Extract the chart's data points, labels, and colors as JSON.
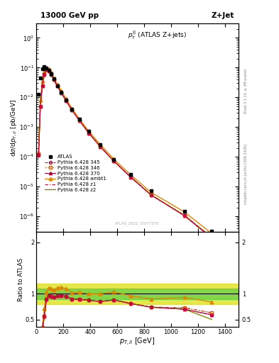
{
  "title_left": "13000 GeV pp",
  "title_right": "Z+Jet",
  "plot_label": "$p_T^{||}$ (ATLAS Z+jets)",
  "watermark": "ATLAS_2022_I2077570",
  "rivet_label": "Rivet 3.1.10, ≥ 3M events",
  "mcplots_label": "mcplots.cern.ch [arXiv:1306.3436]",
  "xlabel": "$p_{T,ll}$ [GeV]",
  "ylabel_main": "d$\\sigma$/d$p_{T,ll}$ [pb/GeV]",
  "ylabel_ratio": "Ratio to ATLAS",
  "main_ylim": [
    3e-07,
    3
  ],
  "ratio_ylim": [
    0.36,
    2.2
  ],
  "ratio_yticks": [
    0.5,
    1.0,
    2.0
  ],
  "xlim": [
    0,
    1500
  ],
  "atlas_x": [
    17,
    30,
    45,
    60,
    75,
    92,
    110,
    130,
    155,
    185,
    220,
    265,
    320,
    390,
    475,
    575,
    700,
    850,
    1100,
    1300
  ],
  "atlas_y": [
    0.013,
    0.045,
    0.09,
    0.105,
    0.095,
    0.08,
    0.062,
    0.042,
    0.025,
    0.015,
    0.0082,
    0.0041,
    0.00185,
    0.00072,
    0.00026,
    8.2e-05,
    2.6e-05,
    7.2e-06,
    1.5e-06,
    3.2e-07
  ],
  "py345_x": [
    17,
    30,
    45,
    60,
    75,
    92,
    110,
    130,
    155,
    185,
    220,
    265,
    320,
    390,
    475,
    575,
    700,
    850,
    1100,
    1300
  ],
  "py345_y": [
    0.00012,
    0.005,
    0.025,
    0.06,
    0.085,
    0.078,
    0.059,
    0.039,
    0.024,
    0.0145,
    0.0078,
    0.0037,
    0.00165,
    0.00063,
    0.00022,
    7.2e-05,
    2.1e-05,
    5.3e-06,
    1.05e-06,
    1.9e-07
  ],
  "py346_x": [
    17,
    30,
    45,
    60,
    75,
    92,
    110,
    130,
    155,
    185,
    220,
    265,
    320,
    390,
    475,
    575,
    700,
    850,
    1100,
    1300
  ],
  "py346_y": [
    0.00012,
    0.005,
    0.025,
    0.06,
    0.085,
    0.078,
    0.059,
    0.039,
    0.024,
    0.0145,
    0.0078,
    0.0037,
    0.00165,
    0.00063,
    0.00022,
    7.2e-05,
    2.1e-05,
    5.3e-06,
    1.1e-06,
    2e-07
  ],
  "py370_x": [
    17,
    30,
    45,
    60,
    75,
    92,
    110,
    130,
    155,
    185,
    220,
    265,
    320,
    390,
    475,
    575,
    700,
    850,
    1100,
    1300
  ],
  "py370_y": [
    0.00012,
    0.005,
    0.025,
    0.06,
    0.085,
    0.078,
    0.059,
    0.039,
    0.024,
    0.0145,
    0.0078,
    0.0037,
    0.00165,
    0.00063,
    0.00022,
    7.2e-05,
    2.1e-05,
    5.3e-06,
    1.05e-06,
    1.9e-07
  ],
  "pyambt1_x": [
    17,
    30,
    45,
    60,
    75,
    92,
    110,
    130,
    155,
    185,
    220,
    265,
    320,
    390,
    475,
    575,
    700,
    850,
    1100,
    1300
  ],
  "pyambt1_y": [
    0.00015,
    0.008,
    0.035,
    0.075,
    0.098,
    0.09,
    0.068,
    0.045,
    0.028,
    0.017,
    0.009,
    0.0042,
    0.0019,
    0.00072,
    0.00026,
    8.5e-05,
    2.5e-05,
    6.5e-06,
    1.4e-06,
    2.7e-07
  ],
  "pyz1_x": [
    17,
    30,
    45,
    60,
    75,
    92,
    110,
    130,
    155,
    185,
    220,
    265,
    320,
    390,
    475,
    575,
    700,
    850,
    1100,
    1300
  ],
  "pyz1_y": [
    0.00012,
    0.005,
    0.025,
    0.06,
    0.085,
    0.078,
    0.059,
    0.039,
    0.024,
    0.0145,
    0.0078,
    0.0037,
    0.00165,
    0.00063,
    0.00022,
    7.2e-05,
    2.1e-05,
    5.3e-06,
    1.1e-06,
    2e-07
  ],
  "pyz2_x": [
    17,
    30,
    45,
    60,
    75,
    92,
    110,
    130,
    155,
    185,
    220,
    265,
    320,
    390,
    475,
    575,
    700,
    850,
    1100,
    1300
  ],
  "pyz2_y": [
    0.00012,
    0.005,
    0.025,
    0.06,
    0.085,
    0.078,
    0.059,
    0.039,
    0.024,
    0.0145,
    0.0078,
    0.0037,
    0.00165,
    0.00063,
    0.00022,
    7.2e-05,
    2.1e-05,
    5.3e-06,
    1.05e-06,
    1.9e-07
  ],
  "ratio_py345": [
    0.009,
    0.11,
    0.28,
    0.57,
    0.89,
    0.97,
    0.95,
    0.93,
    0.96,
    0.97,
    0.95,
    0.9,
    0.89,
    0.875,
    0.85,
    0.88,
    0.81,
    0.74,
    0.7,
    0.59
  ],
  "ratio_py346": [
    0.009,
    0.11,
    0.28,
    0.57,
    0.89,
    0.97,
    0.95,
    0.93,
    0.96,
    0.97,
    0.95,
    0.9,
    0.89,
    0.875,
    0.85,
    0.88,
    0.81,
    0.74,
    0.73,
    0.63
  ],
  "ratio_py370": [
    0.009,
    0.11,
    0.28,
    0.57,
    0.89,
    0.97,
    0.95,
    0.93,
    0.96,
    0.97,
    0.95,
    0.9,
    0.89,
    0.875,
    0.85,
    0.88,
    0.81,
    0.74,
    0.7,
    0.59
  ],
  "ratio_pyambt1": [
    0.012,
    0.18,
    0.39,
    0.71,
    1.03,
    1.12,
    1.1,
    1.07,
    1.12,
    1.13,
    1.1,
    1.02,
    1.03,
    1.0,
    1.0,
    1.04,
    0.96,
    0.9,
    0.93,
    0.84
  ],
  "ratio_pyz1": [
    0.009,
    0.11,
    0.28,
    0.57,
    0.89,
    0.97,
    0.95,
    0.93,
    0.96,
    0.97,
    0.95,
    0.9,
    0.89,
    0.875,
    0.85,
    0.88,
    0.81,
    0.74,
    0.73,
    0.63
  ],
  "ratio_pyz2": [
    0.009,
    0.11,
    0.28,
    0.57,
    0.89,
    0.97,
    0.95,
    0.93,
    0.96,
    0.97,
    0.95,
    0.9,
    0.89,
    0.875,
    0.85,
    0.88,
    0.81,
    0.74,
    0.7,
    0.5
  ],
  "band_yellow_ylo": 0.8,
  "band_yellow_yhi": 1.2,
  "band_green_ylo": 0.9,
  "band_green_yhi": 1.1,
  "color_py345": "#cc0044",
  "color_py346": "#cc6600",
  "color_py370": "#aa0033",
  "color_pyambt1": "#dd8800",
  "color_pyz1": "#cc1133",
  "color_pyz2": "#888800",
  "color_atlas": "#000000",
  "color_green_band": "#44cc44",
  "color_yellow_band": "#dddd00"
}
